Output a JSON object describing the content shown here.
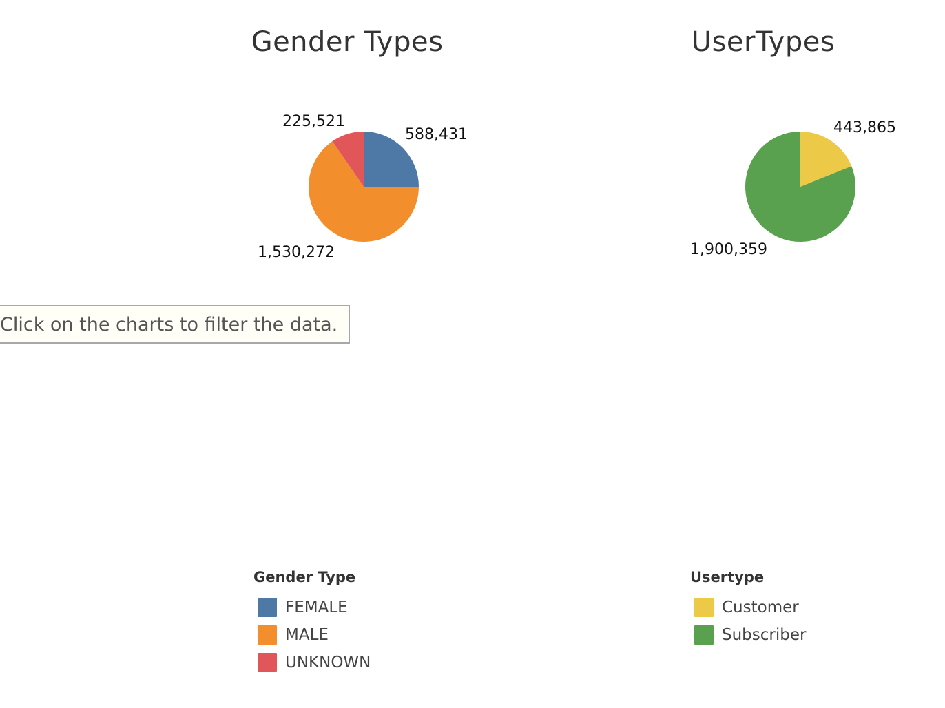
{
  "hint": {
    "text": "Click on the charts to filter the data."
  },
  "colors": {
    "female": "#4e79a7",
    "male": "#f28e2b",
    "unknown": "#e15759",
    "customer": "#edc948",
    "subscriber": "#59a14f"
  },
  "chart_data": [
    {
      "type": "pie",
      "title": "Gender Types",
      "slices": [
        {
          "name": "FEMALE",
          "value": 588431,
          "label": "588,431",
          "color": "#4e79a7"
        },
        {
          "name": "MALE",
          "value": 1530272,
          "label": "1,530,272",
          "color": "#f28e2b"
        },
        {
          "name": "UNKNOWN",
          "value": 225521,
          "label": "225,521",
          "color": "#e15759"
        }
      ],
      "legend": {
        "title": "Gender Type",
        "placement": "bottom",
        "items": [
          "FEMALE",
          "MALE",
          "UNKNOWN"
        ]
      }
    },
    {
      "type": "pie",
      "title": "UserTypes",
      "slices": [
        {
          "name": "Customer",
          "value": 443865,
          "label": "443,865",
          "color": "#edc948"
        },
        {
          "name": "Subscriber",
          "value": 1900359,
          "label": "1,900,359",
          "color": "#59a14f"
        }
      ],
      "legend": {
        "title": "Usertype",
        "placement": "bottom",
        "items": [
          "Customer",
          "Subscriber"
        ]
      }
    }
  ]
}
